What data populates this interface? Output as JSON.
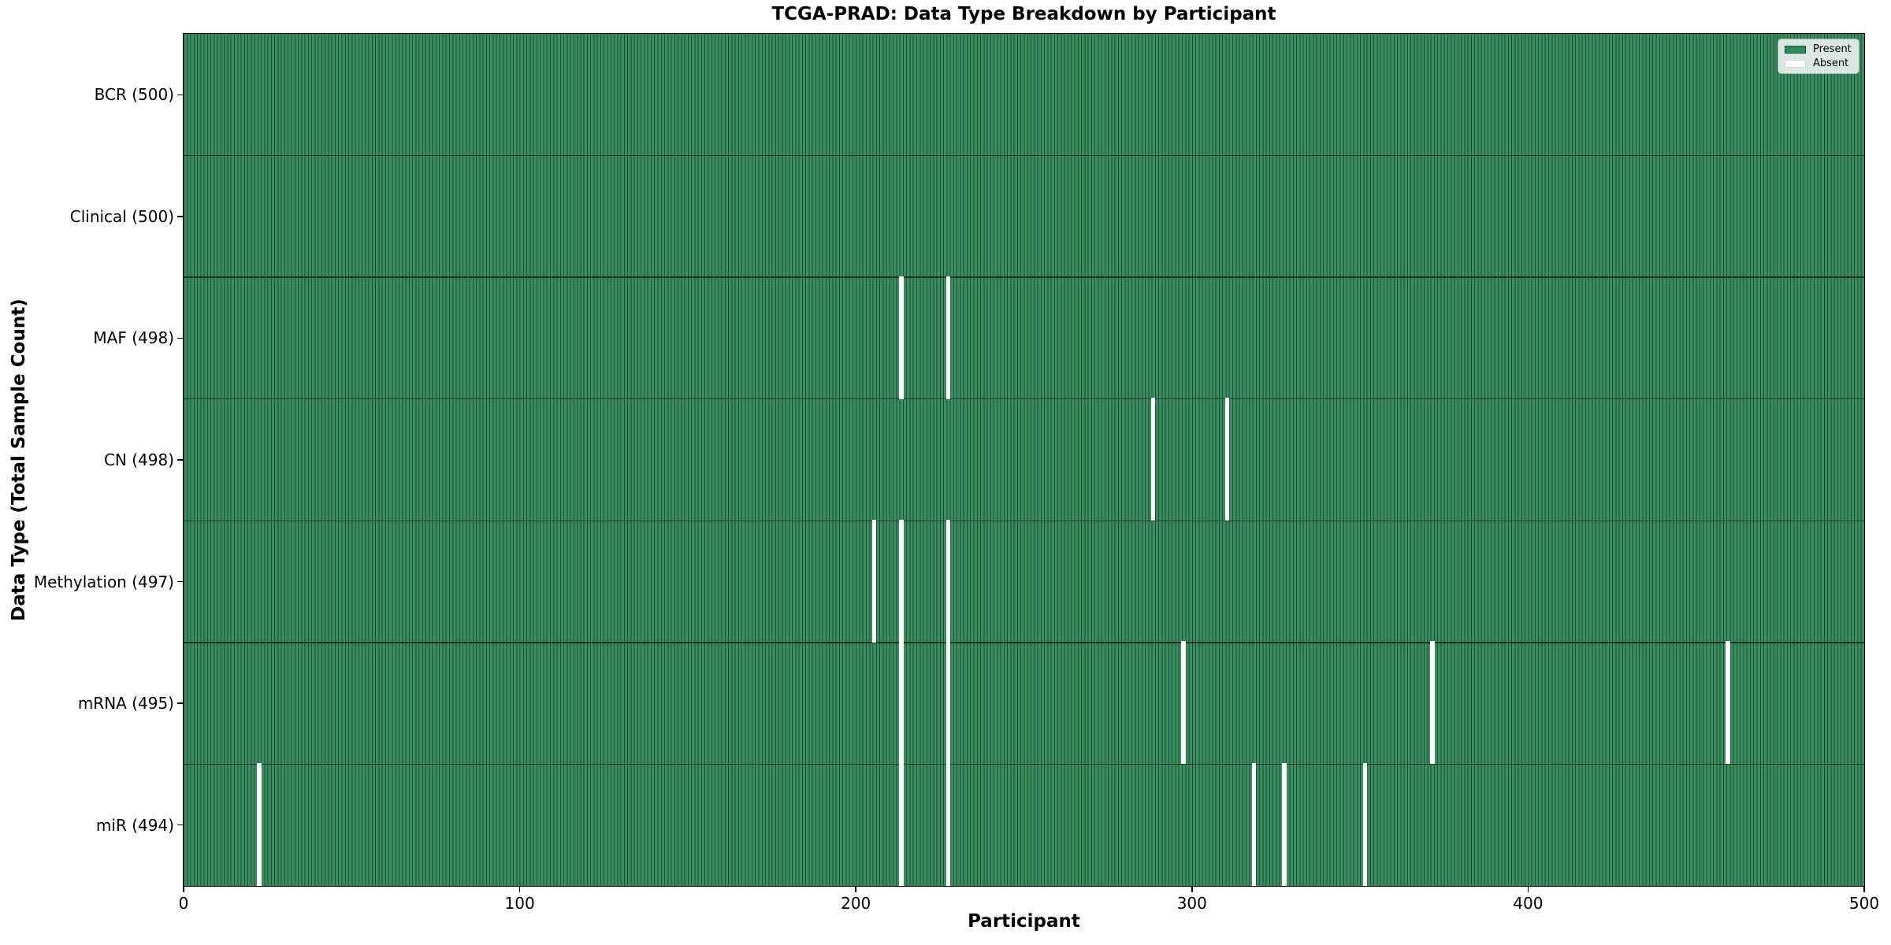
{
  "chart_data": {
    "type": "heatmap",
    "title": "TCGA-PRAD: Data Type Breakdown by Participant",
    "xlabel": "Participant",
    "ylabel": "Data Type (Total Sample Count)",
    "x_ticks": [
      0,
      100,
      200,
      300,
      400,
      500
    ],
    "x_range": [
      0,
      500
    ],
    "n_participants": 500,
    "grid": false,
    "rows": [
      {
        "label": "BCR (500)",
        "total": 500,
        "absent_participants": []
      },
      {
        "label": "Clinical (500)",
        "total": 500,
        "absent_participants": []
      },
      {
        "label": "MAF (498)",
        "total": 498,
        "absent_participants": [
          213,
          227
        ]
      },
      {
        "label": "CN (498)",
        "total": 498,
        "absent_participants": [
          288,
          310
        ]
      },
      {
        "label": "Methylation (497)",
        "total": 497,
        "absent_participants": [
          205,
          213,
          227
        ]
      },
      {
        "label": "mRNA (495)",
        "total": 495,
        "absent_participants": [
          213,
          227,
          297,
          371,
          459
        ]
      },
      {
        "label": "miR (494)",
        "total": 494,
        "absent_participants": [
          22,
          213,
          227,
          318,
          327,
          351
        ]
      }
    ],
    "legend": {
      "position": "upper right",
      "entries": [
        {
          "label": "Present",
          "color": "#2E8B57"
        },
        {
          "label": "Absent",
          "color": "#FFFFFF"
        }
      ]
    },
    "colors": {
      "present": "#3A8D5E",
      "absent": "#FFFFFF",
      "bar_edge": "#1E5034",
      "row_separator": "#173826",
      "axis": "#000000"
    }
  }
}
